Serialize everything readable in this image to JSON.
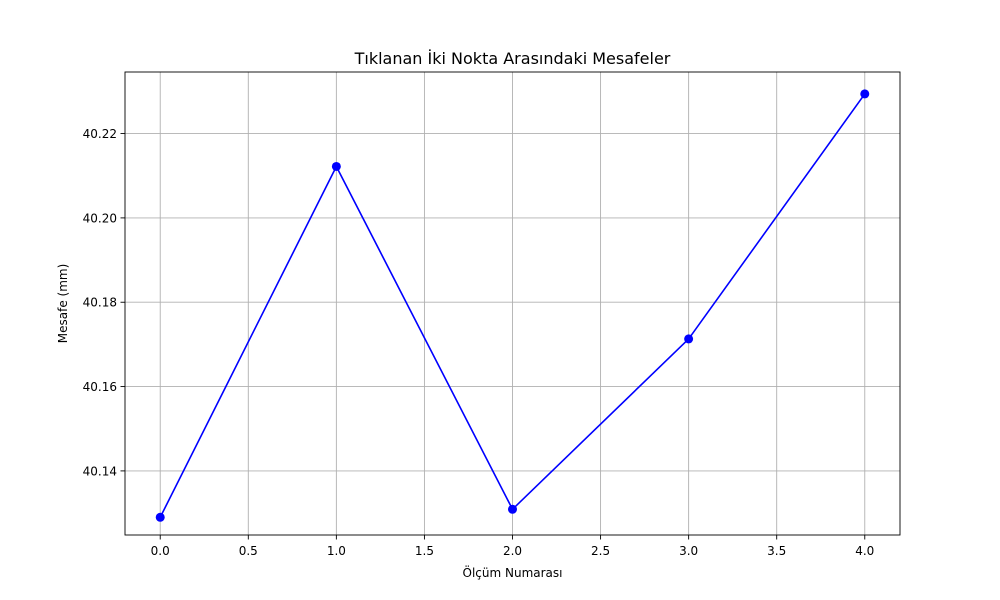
{
  "chart_data": {
    "type": "line",
    "title": "Tıklanan İki Nokta Arasındaki Mesafeler",
    "xlabel": "Ölçüm Numarası",
    "ylabel": "Mesafe (mm)",
    "x": [
      0,
      1,
      2,
      3,
      4
    ],
    "series": [
      {
        "values": [
          40.129,
          40.2122,
          40.1309,
          40.1713,
          40.2294
        ],
        "color": "#0000ff",
        "marker": "circle"
      }
    ],
    "xlim": [
      -0.2,
      4.2
    ],
    "ylim": [
      40.1248,
      40.2346
    ],
    "xticks": [
      0.0,
      0.5,
      1.0,
      1.5,
      2.0,
      2.5,
      3.0,
      3.5,
      4.0
    ],
    "xtick_labels": [
      "0.0",
      "0.5",
      "1.0",
      "1.5",
      "2.0",
      "2.5",
      "3.0",
      "3.5",
      "4.0"
    ],
    "yticks": [
      40.14,
      40.16,
      40.18,
      40.2,
      40.22
    ],
    "ytick_labels": [
      "40.14",
      "40.16",
      "40.18",
      "40.20",
      "40.22"
    ],
    "grid": true
  }
}
